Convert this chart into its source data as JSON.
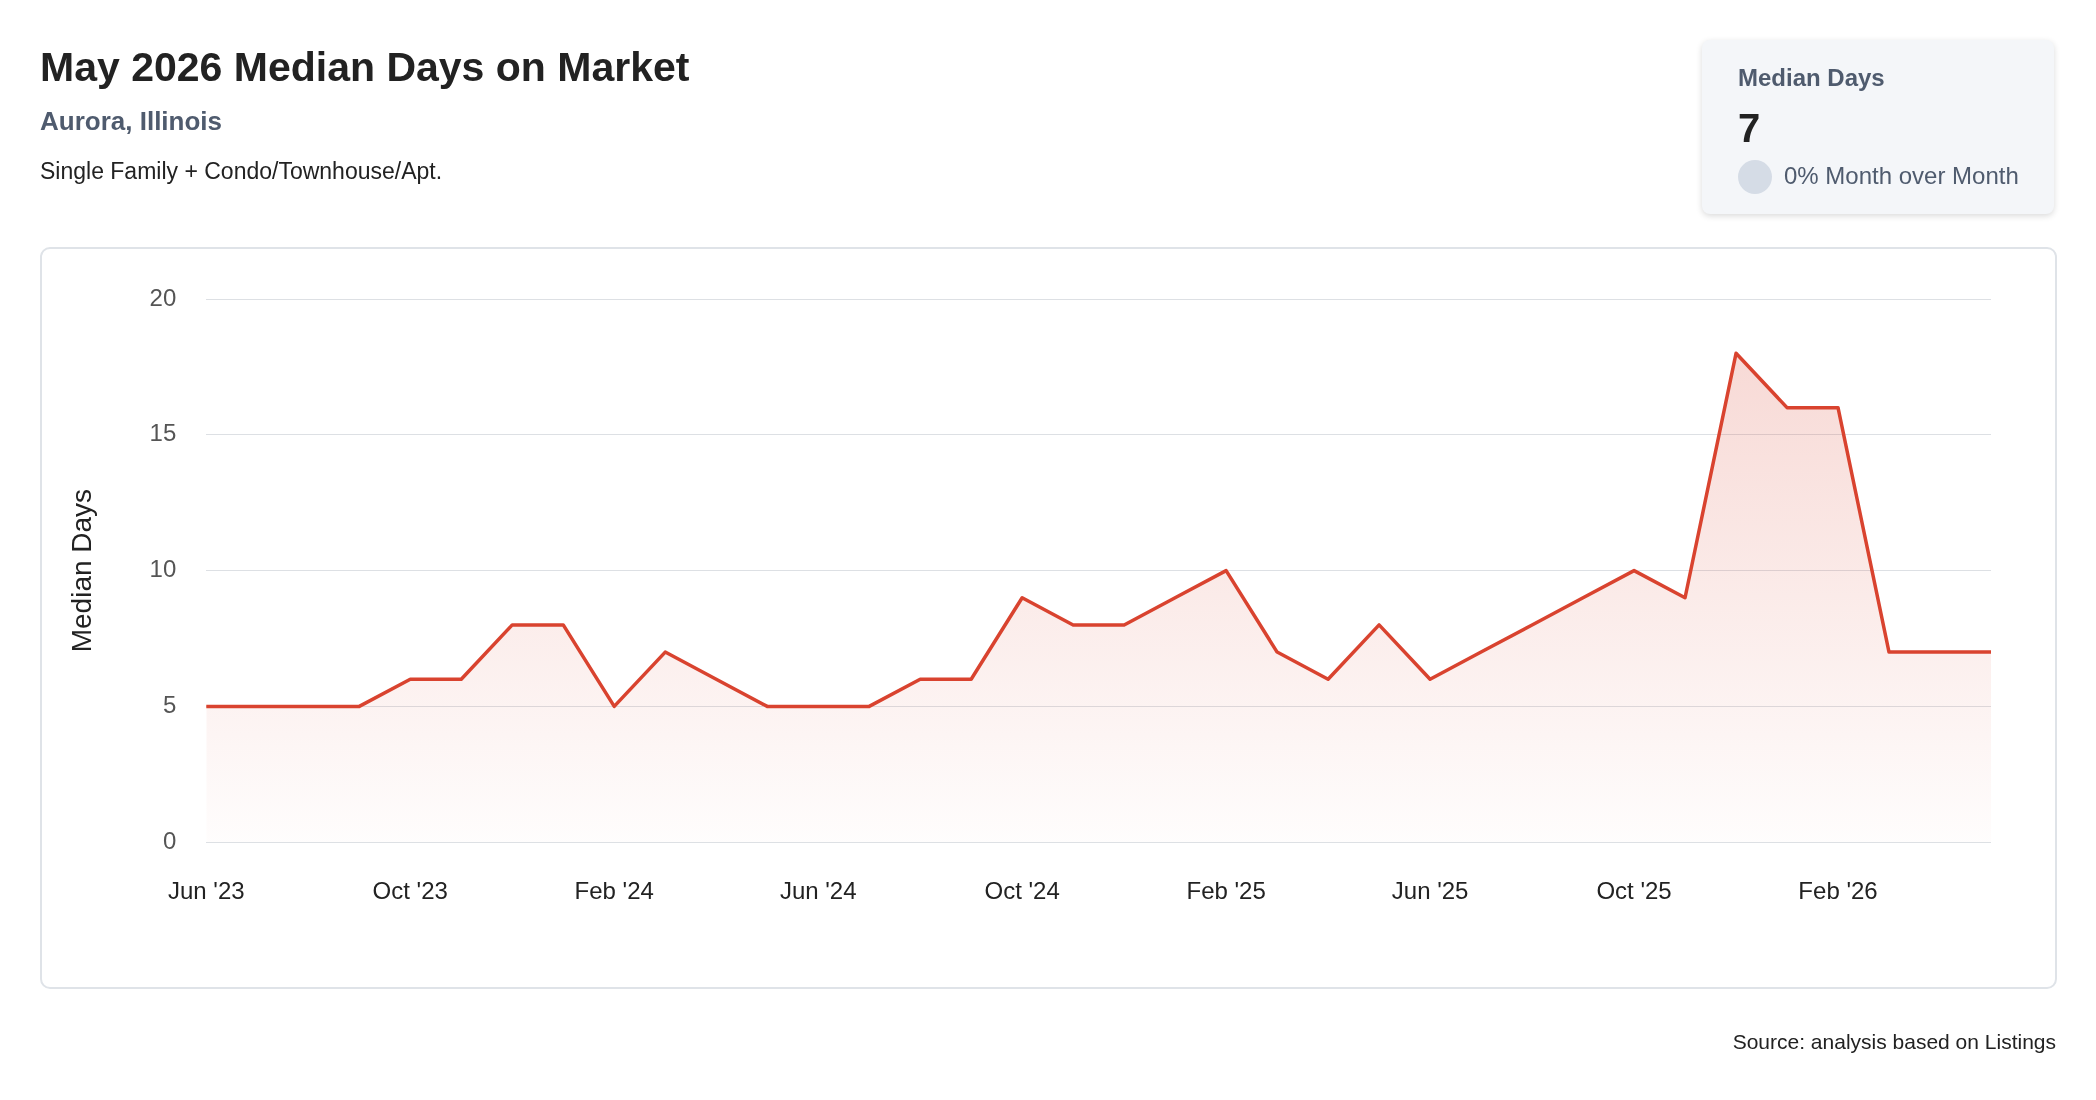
{
  "chart_data": [
    {
      "type": "area",
      "title": "May 2026 Median Days on Market",
      "subtitle": "Aurora, Illinois",
      "annotations": [
        "Single Family + Condo/Townhouse/Apt.",
        "Source: analysis based on Listings"
      ],
      "ylabel": "Median Days",
      "categories": [
        "Jun '23",
        null,
        null,
        null,
        "Oct '23",
        null,
        null,
        null,
        "Feb '24",
        null,
        null,
        null,
        "Jun '24",
        null,
        null,
        null,
        "Oct '24",
        null,
        null,
        null,
        "Feb '25",
        null,
        null,
        null,
        "Jun '25",
        null,
        null,
        null,
        "Oct '25",
        null,
        null,
        null,
        "Feb '26",
        null,
        null,
        null
      ],
      "series": [
        {
          "color": "#d9432f",
          "values": [
            5,
            5,
            5,
            5,
            6,
            6,
            8,
            8,
            5,
            7,
            6,
            5,
            5,
            5,
            6,
            6,
            9,
            8,
            8,
            9,
            10,
            7,
            6,
            8,
            6,
            7,
            8,
            9,
            10,
            9,
            18,
            16,
            16,
            7,
            7,
            7
          ]
        }
      ],
      "ylim": [
        0,
        20
      ],
      "yticks": [
        0,
        5,
        10,
        15,
        20
      ],
      "grid": "y",
      "legend": false,
      "marker": "none",
      "line_style": "solid"
    },
    {
      "type": "other",
      "title": "Median Days",
      "annotations": [
        "7",
        "0% Month over Month"
      ]
    }
  ]
}
